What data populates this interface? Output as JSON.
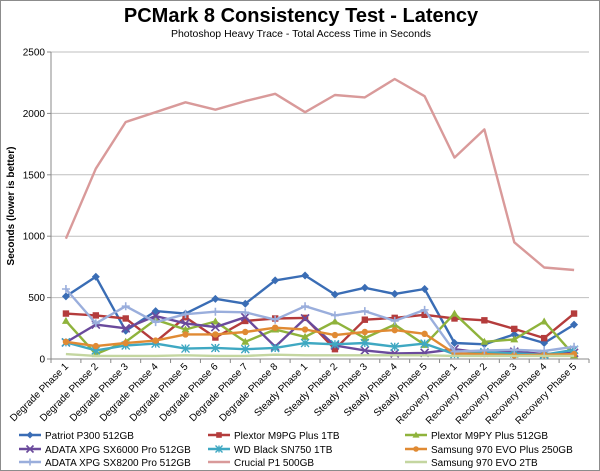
{
  "chart_data": {
    "type": "line",
    "title": "PCMark 8 Consistency Test - Latency",
    "subtitle": "Photoshop Heavy Trace - Total Access Time in Seconds",
    "xlabel": "",
    "ylabel": "Seconds (lower is better)",
    "ylim": [
      0,
      2500
    ],
    "yticks": [
      0,
      500,
      1000,
      1500,
      2000,
      2500
    ],
    "grid": true,
    "legend_position": "bottom",
    "categories": [
      "Degrade Phase 1",
      "Degrade Phase 2",
      "Degrade Phase 3",
      "Degrade Phase 4",
      "Degrade Phase 5",
      "Degrade Phase 6",
      "Degrade Phase 7",
      "Degrade Phase 8",
      "Steady Phase 1",
      "Steady Phase 2",
      "Steady Phase 3",
      "Steady Phase 4",
      "Steady Phase 5",
      "Recovery Phase 1",
      "Recovery Phase 2",
      "Recovery Phase 3",
      "Recovery Phase 4",
      "Recovery Phase 5"
    ],
    "series": [
      {
        "name": "Patriot P300 512GB",
        "color": "#3a6db5",
        "marker": "diamond",
        "values": [
          510,
          670,
          230,
          390,
          370,
          490,
          450,
          640,
          680,
          525,
          580,
          530,
          570,
          130,
          120,
          200,
          130,
          280
        ]
      },
      {
        "name": "Plextor M9PG Plus 1TB",
        "color": "#b43c3c",
        "marker": "square",
        "values": [
          370,
          355,
          330,
          140,
          340,
          175,
          310,
          330,
          335,
          80,
          320,
          335,
          360,
          330,
          315,
          245,
          170,
          370
        ]
      },
      {
        "name": "Plextor M9PY Plus 512GB",
        "color": "#8fb33c",
        "marker": "triangle",
        "values": [
          310,
          40,
          140,
          320,
          240,
          305,
          140,
          240,
          180,
          305,
          170,
          280,
          115,
          370,
          140,
          160,
          305,
          30
        ]
      },
      {
        "name": "ADATA XPG SX6000 Pro 512GB",
        "color": "#6a4a9c",
        "marker": "x",
        "values": [
          135,
          280,
          250,
          350,
          290,
          260,
          340,
          100,
          330,
          110,
          70,
          45,
          50,
          80,
          50,
          60,
          40,
          50
        ]
      },
      {
        "name": "WD Black SN750 1TB",
        "color": "#3fa8c2",
        "marker": "star",
        "values": [
          135,
          70,
          110,
          125,
          85,
          90,
          80,
          90,
          130,
          120,
          130,
          100,
          125,
          40,
          55,
          45,
          35,
          75
        ]
      },
      {
        "name": "Samsung 970 EVO Plus 250GB",
        "color": "#e08a33",
        "marker": "circle",
        "values": [
          140,
          105,
          130,
          150,
          200,
          200,
          220,
          255,
          240,
          195,
          220,
          235,
          205,
          45,
          40,
          30,
          35,
          40
        ]
      },
      {
        "name": "ADATA XPG SX8200 Pro 512GB",
        "color": "#9aaedc",
        "marker": "plus",
        "values": [
          570,
          290,
          430,
          300,
          365,
          385,
          380,
          320,
          430,
          355,
          390,
          310,
          400,
          60,
          70,
          75,
          65,
          100
        ]
      },
      {
        "name": "Crucial P1 500GB",
        "color": "#d99a9a",
        "marker": "none",
        "values": [
          980,
          1550,
          1930,
          2010,
          2090,
          2030,
          2100,
          2160,
          2010,
          2150,
          2130,
          2280,
          2140,
          1640,
          1870,
          950,
          745,
          725
        ]
      },
      {
        "name": "Samsung 970 EVO 2TB",
        "color": "#c4d6a0",
        "marker": "none",
        "values": [
          40,
          25,
          25,
          25,
          30,
          25,
          25,
          35,
          30,
          30,
          30,
          30,
          30,
          25,
          25,
          25,
          25,
          25
        ]
      }
    ]
  }
}
